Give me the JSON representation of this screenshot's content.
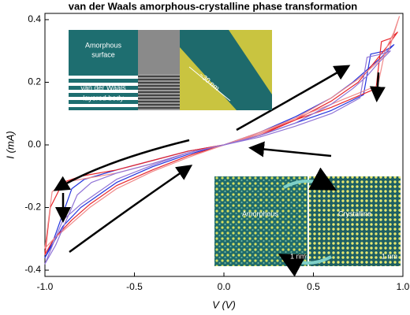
{
  "chart_data": {
    "type": "line",
    "title": "van der Waals amorphous-crystalline  phase transformation",
    "x_label": "V (V)",
    "y_label": "I (mA)",
    "xlim": [
      -1,
      1
    ],
    "xticks": [
      {
        "value": -1,
        "label": "-1.0"
      },
      -0.5,
      {
        "value": 0,
        "label": "0.0"
      },
      0.5,
      {
        "value": 1,
        "label": "1.0"
      }
    ],
    "ylim": [
      -0.42,
      0.42
    ],
    "yticks": [
      -0.4,
      -0.2,
      {
        "value": 0,
        "label": "0.0"
      },
      0.2,
      0.4
    ],
    "annotations": [
      "Amorphous",
      "surface",
      "van der Waals",
      "layered body",
      "~30 nm",
      "Amorphous",
      "Crystalline",
      "1 nm",
      "1 nm"
    ],
    "series": [
      {
        "color": "#2233dd",
        "x": [
          0,
          0.2,
          0.4,
          0.6,
          0.72,
          0.8,
          0.88,
          0.95,
          0.9,
          0.82,
          0.78,
          0.6,
          0.4,
          0.2,
          0,
          -0.2,
          -0.4,
          -0.6,
          -0.7,
          -0.8,
          -0.9,
          -1,
          -0.95,
          -0.85,
          -0.78,
          -0.6,
          -0.4,
          -0.2,
          0
        ],
        "values": [
          0,
          0.04,
          0.09,
          0.15,
          0.2,
          0.24,
          0.28,
          0.32,
          0.3,
          0.29,
          0.16,
          0.11,
          0.07,
          0.03,
          0,
          -0.03,
          -0.07,
          -0.12,
          -0.16,
          -0.2,
          -0.26,
          -0.36,
          -0.3,
          -0.14,
          -0.11,
          -0.08,
          -0.05,
          -0.02,
          0
        ]
      },
      {
        "color": "#e8262b",
        "x": [
          0,
          0.2,
          0.4,
          0.6,
          0.75,
          0.85,
          0.92,
          0.97,
          0.93,
          0.88,
          0.85,
          0.6,
          0.4,
          0.2,
          0,
          -0.2,
          -0.4,
          -0.6,
          -0.75,
          -0.85,
          -0.95,
          -1,
          -0.97,
          -0.9,
          -0.8,
          -0.6,
          -0.4,
          -0.2,
          0
        ],
        "values": [
          0,
          0.03,
          0.08,
          0.14,
          0.2,
          0.27,
          0.32,
          0.36,
          0.34,
          0.33,
          0.18,
          0.12,
          0.08,
          0.035,
          0,
          -0.035,
          -0.08,
          -0.13,
          -0.19,
          -0.24,
          -0.3,
          -0.35,
          -0.2,
          -0.12,
          -0.1,
          -0.08,
          -0.05,
          -0.02,
          0
        ]
      },
      {
        "color": "#f08a8a",
        "x": [
          0,
          0.2,
          0.4,
          0.6,
          0.75,
          0.85,
          0.92,
          0.98,
          0.95,
          0.9,
          0.86,
          0.6,
          0.4,
          0.2,
          0,
          -0.2,
          -0.4,
          -0.6,
          -0.75,
          -0.85,
          -0.95,
          -1,
          -0.96,
          -0.9,
          -0.8,
          -0.6,
          -0.4,
          -0.2,
          0
        ],
        "values": [
          0,
          0.035,
          0.085,
          0.15,
          0.21,
          0.26,
          0.3,
          0.41,
          0.36,
          0.3,
          0.19,
          0.13,
          0.085,
          0.04,
          0,
          -0.04,
          -0.085,
          -0.14,
          -0.2,
          -0.25,
          -0.3,
          -0.33,
          -0.15,
          -0.12,
          -0.11,
          -0.09,
          -0.06,
          -0.025,
          0
        ]
      },
      {
        "color": "#8f72d6",
        "x": [
          0,
          0.2,
          0.4,
          0.6,
          0.72,
          0.8,
          0.86,
          0.93,
          0.88,
          0.8,
          0.76,
          0.6,
          0.4,
          0.2,
          0,
          -0.2,
          -0.4,
          -0.6,
          -0.7,
          -0.8,
          -0.9,
          -1,
          -0.94,
          -0.82,
          -0.74,
          -0.6,
          -0.4,
          -0.2,
          0
        ],
        "values": [
          0,
          0.03,
          0.07,
          0.13,
          0.18,
          0.22,
          0.26,
          0.3,
          0.29,
          0.28,
          0.15,
          0.1,
          0.06,
          0.025,
          0,
          -0.025,
          -0.065,
          -0.11,
          -0.15,
          -0.19,
          -0.24,
          -0.38,
          -0.32,
          -0.16,
          -0.12,
          -0.09,
          -0.06,
          -0.025,
          0
        ]
      }
    ]
  }
}
